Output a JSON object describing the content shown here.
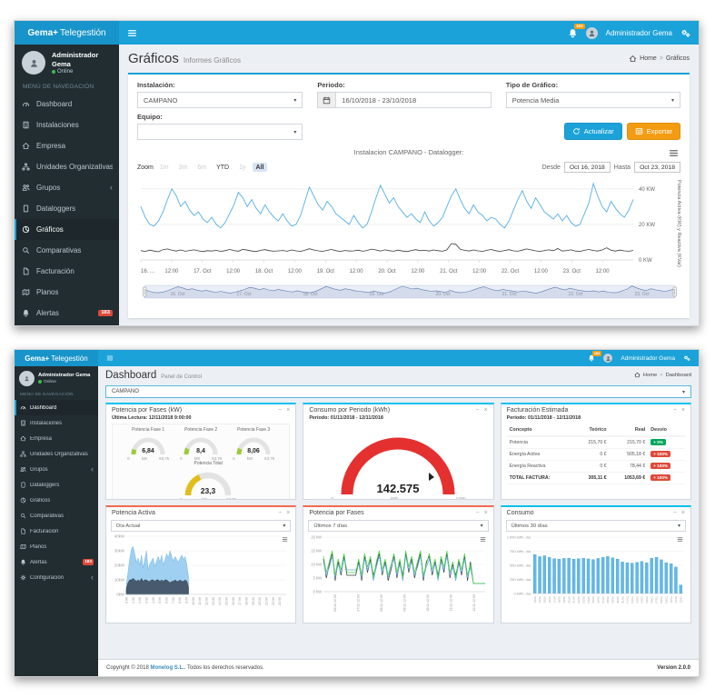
{
  "app": {
    "brand_bold": "Gema+",
    "brand_light": "Telegestión",
    "user_name": "Administrador Gema",
    "user_status": "Online",
    "notification_count": "183"
  },
  "sidebar": {
    "header": "MENÚ DE NAVEGACIÓN",
    "items": [
      {
        "id": "dashboard",
        "label": "Dashboard",
        "icon": "tachometer-icon"
      },
      {
        "id": "instalaciones",
        "label": "Instalaciones",
        "icon": "building-icon"
      },
      {
        "id": "empresa",
        "label": "Empresa",
        "icon": "home-icon"
      },
      {
        "id": "unidades",
        "label": "Unidades Organizativas",
        "icon": "sitemap-icon"
      },
      {
        "id": "grupos",
        "label": "Grupos",
        "icon": "users-icon",
        "chevron": true
      },
      {
        "id": "dataloggers",
        "label": "Dataloggers",
        "icon": "tablet-icon"
      },
      {
        "id": "graficos",
        "label": "Gráficos",
        "icon": "pie-chart-icon"
      },
      {
        "id": "comparativas",
        "label": "Comparativas",
        "icon": "search-icon"
      },
      {
        "id": "facturacion",
        "label": "Facturación",
        "icon": "file-icon"
      },
      {
        "id": "planos",
        "label": "Planos",
        "icon": "map-icon"
      },
      {
        "id": "alertas",
        "label": "Alertas",
        "icon": "bell-icon",
        "badge": "183"
      },
      {
        "id": "configuracion",
        "label": "Configuración",
        "icon": "gear-icon",
        "chevron": true
      }
    ]
  },
  "graficos": {
    "title": "Gráficos",
    "subtitle": "Informes Gráficos",
    "breadcrumb": {
      "home": "Home",
      "current": "Gráficos"
    },
    "filters": {
      "instalacion_label": "Instalación:",
      "instalacion_value": "CAMPANO",
      "periodo_label": "Periodo:",
      "periodo_value": "16/10/2018 - 23/10/2018",
      "tipo_label": "Tipo de Gráfico:",
      "tipo_value": "Potencia Media",
      "equipo_label": "Equipo:",
      "equipo_value": "",
      "actualizar_label": "Actualizar",
      "exportar_label": "Exportar"
    },
    "chart": {
      "title": "Instalacion CAMPANO - Datalogger:",
      "zoom_label": "Zoom",
      "zoom_buttons": [
        {
          "label": "1m",
          "state": "disabled"
        },
        {
          "label": "3m",
          "state": "disabled"
        },
        {
          "label": "6m",
          "state": "disabled"
        },
        {
          "label": "YTD",
          "state": "normal"
        },
        {
          "label": "1y",
          "state": "disabled"
        },
        {
          "label": "All",
          "state": "active"
        }
      ],
      "desde_label": "Desde",
      "desde_value": "Oct 16, 2018",
      "hasta_label": "Hasta",
      "hasta_value": "Oct 23, 2018"
    }
  },
  "dashboard": {
    "title": "Dashboard",
    "subtitle": "Panel de Control",
    "breadcrumb": {
      "home": "Home",
      "current": "Dashboard"
    },
    "selector_value": "CAMPANO",
    "cards": {
      "potencia_fases_kw": {
        "title": "Potencia por Fases (kW)",
        "subtitle": "Última Lectura: 12/11/2018 9:00:00"
      },
      "consumo_periodo": {
        "title": "Consumo por Periodo (kWh)",
        "subtitle": "Periodo: 01/11/2018 - 12/11/2018"
      },
      "facturacion_estimada": {
        "title": "Facturación Estimada",
        "subtitle": "Periodo: 01/11/2018 - 12/11/2018",
        "table": {
          "headers": [
            "Concepto",
            "Teórico",
            "Real",
            "Desvío"
          ],
          "rows": [
            {
              "concepto": "Potencia",
              "teorico": "215,70 €",
              "real": "215,70 €",
              "desvio": "+ 0%",
              "desvio_state": "ok"
            },
            {
              "concepto": "Energía Activa",
              "teorico": "0 €",
              "real": "505,18 €",
              "desvio": "+ 100%",
              "desvio_state": "bad"
            },
            {
              "concepto": "Energía Reactiva",
              "teorico": "0 €",
              "real": "78,44 €",
              "desvio": "+ 100%",
              "desvio_state": "bad"
            },
            {
              "concepto": "TOTAL FACTURA:",
              "teorico": "305,11 €",
              "real": "1053,69 €",
              "desvio": "+ 100%",
              "desvio_state": "bad",
              "total": true
            }
          ]
        }
      },
      "potencia_activa": {
        "title": "Potencia Activa",
        "select_value": "Día Actual"
      },
      "potencia_fases": {
        "title": "Potencia por Fases",
        "select_value": "Últimos 7 días"
      },
      "consumo": {
        "title": "Consumo",
        "select_value": "Últimos 30 días"
      }
    },
    "footer": {
      "copyright_prefix": "Copyright © 2018 ",
      "company": "Monelog S.L.",
      "copyright_suffix": ". Todos los derechos reservados.",
      "version": "Version 2.0.0"
    }
  },
  "chart_data": [
    {
      "id": "potencia-media",
      "type": "line",
      "title": "Instalacion CAMPANO - Datalogger:",
      "ylabel": "Potencia Activa (KW) y Reactiva (KVar)",
      "ymax": 45,
      "yticks": [
        {
          "value": 40,
          "label": "40 KW"
        },
        {
          "value": 20,
          "label": "20 KW"
        },
        {
          "value": 0,
          "label": "0 KW"
        }
      ],
      "xlabels": [
        "16. ...",
        "12:00",
        "17. Oct",
        "12:00",
        "18. Oct",
        "12:00",
        "19. Oct",
        "12:00",
        "20. Oct",
        "12:00",
        "21. Oct",
        "12:00",
        "22. Oct",
        "12:00",
        "23. Oct",
        "12:00"
      ],
      "navigator_labels": [
        "16. Oct",
        "17. Oct",
        "18. Oct",
        "19. Oct",
        "20. Oct",
        "21. Oct",
        "22. Oct",
        "23. Oct"
      ],
      "series": [
        {
          "color": "#55aee3",
          "values": [
            30,
            24,
            20,
            19,
            22,
            27,
            34,
            40,
            36,
            30,
            33,
            28,
            25,
            27,
            23,
            21,
            24,
            20,
            18,
            21,
            26,
            31,
            38,
            35,
            30,
            34,
            29,
            26,
            31,
            27,
            24,
            22,
            26,
            22,
            19,
            20,
            25,
            33,
            41,
            36,
            31,
            28,
            33,
            30,
            26,
            24,
            22,
            20,
            25,
            21,
            18,
            20,
            27,
            35,
            42,
            37,
            32,
            35,
            30,
            27,
            24,
            26,
            23,
            21,
            27,
            22,
            19,
            21,
            24,
            30,
            36,
            40,
            34,
            29,
            26,
            31,
            27,
            25,
            22,
            24,
            23,
            20,
            18,
            22,
            28,
            34,
            39,
            33,
            29,
            35,
            31,
            27,
            25,
            23,
            26,
            22,
            25,
            21,
            19,
            20,
            26,
            32,
            43,
            36,
            30,
            27,
            33,
            29,
            26,
            24,
            28,
            34
          ]
        },
        {
          "color": "#3c3c40",
          "values": [
            5.2,
            4.8,
            5.5,
            5.0,
            4.6,
            5.8,
            6.2,
            5.4,
            5.0,
            5.6,
            4.9,
            5.3,
            5.7,
            5.1,
            4.7,
            5.2,
            5.0,
            5.4,
            4.8,
            5.2,
            5.9,
            5.3,
            4.9,
            6.0,
            5.5,
            5.0,
            4.7,
            5.4,
            5.8,
            5.2,
            4.9,
            5.1,
            5.3,
            4.9,
            5.6,
            5.1,
            4.8,
            5.5,
            6.3,
            5.6,
            5.1,
            4.8,
            5.4,
            5.9,
            5.2,
            4.8,
            5.3,
            5.0,
            5.1,
            5.5,
            4.9,
            5.3,
            6.1,
            5.6,
            5.0,
            5.7,
            5.2,
            4.9,
            5.5,
            5.0,
            4.7,
            5.3,
            5.8,
            5.2,
            5.4,
            5.0,
            5.6,
            5.2,
            4.9,
            5.7,
            9.2,
            8.8,
            6.0,
            5.4,
            5.0,
            5.6,
            5.1,
            4.8,
            5.4,
            5.9,
            5.2,
            4.8,
            5.3,
            5.8,
            5.1,
            4.9,
            5.5,
            6.2,
            5.6,
            5.1,
            4.8,
            5.3,
            5.7,
            5.2,
            6.4,
            5.0,
            5.3,
            5.7,
            5.0,
            4.8,
            5.4,
            5.9,
            5.3,
            5.0,
            5.6,
            6.8,
            5.4,
            5.0,
            5.5,
            5.1,
            4.9,
            5.3
          ]
        }
      ]
    },
    {
      "id": "potencia-activa-dia",
      "type": "area",
      "ymax": 40,
      "total_slots": 96,
      "yticks": [
        {
          "value": 40,
          "label": "40kW"
        },
        {
          "value": 30,
          "label": "30kW"
        },
        {
          "value": 20,
          "label": "20kW"
        },
        {
          "value": 10,
          "label": "10kW"
        },
        {
          "value": 0,
          "label": "0kW"
        }
      ],
      "xlabels": [
        "0:00",
        "1:00",
        "2:00",
        "3:00",
        "4:00",
        "5:00",
        "6:00",
        "7:00",
        "8:00",
        "9:00",
        "10:00",
        "11:00",
        "12:00",
        "13:00",
        "14:00",
        "15:00",
        "16:00",
        "17:00",
        "18:00",
        "19:00",
        "20:00",
        "21:00",
        "22:00",
        "23:00"
      ],
      "series": [
        {
          "color": "#9fd0f1",
          "stroke": "#74b6e4",
          "values": [
            6,
            15,
            24,
            31,
            33,
            28,
            22,
            25,
            20,
            27,
            18,
            24,
            30,
            17,
            21,
            23,
            25,
            19,
            23,
            26,
            22,
            27,
            20,
            24,
            28,
            25,
            30,
            26,
            23,
            26,
            24,
            22,
            25,
            27,
            24,
            26,
            20,
            12
          ]
        },
        {
          "color": "#475a6e",
          "stroke": "#33424f",
          "values": [
            4,
            8,
            10,
            10,
            11,
            10,
            9,
            10,
            9,
            11,
            9,
            10,
            10,
            9,
            9,
            10,
            10,
            9,
            10,
            10,
            9,
            10,
            9,
            10,
            10,
            9,
            8,
            9,
            9,
            10,
            9,
            9,
            10,
            9,
            9,
            10,
            9,
            5
          ]
        }
      ]
    },
    {
      "id": "potencia-fases-7d",
      "type": "line",
      "ymax": 20,
      "yticks": [
        {
          "value": 20,
          "label": "20 kW"
        },
        {
          "value": 15,
          "label": "15 kW"
        },
        {
          "value": 10,
          "label": "10 kW"
        },
        {
          "value": 5,
          "label": "5 kW"
        },
        {
          "value": 0,
          "label": "0 kW"
        }
      ],
      "xlabels": [
        "06/11 12:00",
        "07/11 12:00",
        "08/11 12:00",
        "09/11 12:00",
        "10/11 12:00",
        "11/11 12:00",
        "12/11 12:00"
      ],
      "series": [
        {
          "color": "#3a3a3a",
          "values": [
            12,
            5,
            10,
            14,
            4,
            11,
            6,
            13,
            6,
            6,
            6,
            6,
            11,
            4,
            13,
            7,
            12,
            6,
            10,
            14,
            6,
            11,
            4,
            8,
            13,
            5,
            11,
            6,
            14,
            7,
            12,
            5,
            10,
            14,
            4,
            11,
            13,
            6,
            11,
            6,
            12,
            7,
            14,
            5,
            10,
            6,
            11,
            6,
            13,
            4,
            11,
            3,
            3,
            3,
            3,
            3
          ]
        },
        {
          "color": "#6aa8e8",
          "values": [
            11,
            6,
            9,
            13,
            5,
            10,
            7,
            12,
            8,
            8,
            8,
            8,
            10,
            5,
            12,
            8,
            11,
            4,
            9,
            13,
            7,
            10,
            5,
            9,
            12,
            6,
            10,
            4,
            13,
            8,
            11,
            6,
            9,
            13,
            5,
            9,
            12,
            7,
            10,
            4,
            11,
            8,
            13,
            6,
            9,
            4,
            10,
            7,
            12,
            5,
            9,
            3,
            3,
            3,
            3,
            3
          ]
        },
        {
          "color": "#3fd23f",
          "values": [
            13,
            7,
            11,
            15,
            6,
            12,
            8,
            14,
            7,
            7,
            7,
            7,
            12,
            6,
            14,
            9,
            13,
            5,
            11,
            15,
            8,
            12,
            6,
            10,
            14,
            7,
            12,
            5,
            15,
            9,
            13,
            7,
            11,
            15,
            6,
            10,
            14,
            8,
            12,
            5,
            13,
            9,
            15,
            7,
            11,
            5,
            12,
            8,
            14,
            6,
            10,
            3,
            3,
            3,
            3,
            3
          ]
        }
      ]
    },
    {
      "id": "consumo-30d",
      "type": "bar",
      "ymax": 1000,
      "color": "#62b9ea",
      "yticks": [
        {
          "value": 1000,
          "label": "1.000 kWh. día"
        },
        {
          "value": 750,
          "label": "750 kWh. día"
        },
        {
          "value": 500,
          "label": "500 kWh. día"
        },
        {
          "value": 250,
          "label": "250 kWh. día"
        },
        {
          "value": 0,
          "label": "0 kWh. día"
        }
      ],
      "xlabels": [
        "13/10",
        "14/10",
        "15/10",
        "16/10",
        "17/10",
        "18/10",
        "19/10",
        "20/10",
        "21/10",
        "22/10",
        "23/10",
        "24/10",
        "25/10",
        "26/10",
        "27/10",
        "28/10",
        "29/10",
        "30/10",
        "31/10",
        "01/11",
        "02/11",
        "03/11",
        "04/11",
        "05/11",
        "06/11",
        "07/11",
        "08/11",
        "09/11",
        "10/11",
        "11/11",
        "12/11"
      ],
      "values": [
        690,
        655,
        670,
        640,
        618,
        612,
        622,
        628,
        610,
        618,
        626,
        615,
        604,
        622,
        641,
        656,
        634,
        612,
        560,
        545,
        538,
        552,
        570,
        544,
        628,
        642,
        598,
        545,
        528,
        470,
        150
      ]
    },
    {
      "id": "gauges",
      "type": "gauge",
      "groups": [
        {
          "panel": "potencia_fases_kw",
          "items": [
            {
              "label": "Potencia Fase 1",
              "value": "6,84",
              "value_num": 6.84,
              "min_label": "0",
              "max_label": "63,75",
              "max_num": 63.75,
              "unit": "kW",
              "color": "#9ccb3b",
              "size": "small"
            },
            {
              "label": "Potencia Fase 2",
              "value": "8,4",
              "value_num": 8.4,
              "min_label": "0",
              "max_label": "63,75",
              "max_num": 63.75,
              "unit": "kW",
              "color": "#9ccb3b",
              "size": "small"
            },
            {
              "label": "Potencia Fase 3",
              "value": "8,06",
              "value_num": 8.06,
              "min_label": "0",
              "max_label": "63,75",
              "max_num": 63.75,
              "unit": "kW",
              "color": "#9ccb3b",
              "size": "small"
            },
            {
              "label": "Potencia Total",
              "value": "23,3",
              "value_num": 23.3,
              "min_label": "0",
              "max_label": "63,75",
              "max_num": 63.75,
              "unit": "kW",
              "color": "#e2bd1b",
              "size": "medium"
            }
          ]
        },
        {
          "panel": "consumo_periodo",
          "items": [
            {
              "label": "",
              "value": "142.575",
              "value_num": 142575,
              "min_label": "0",
              "max_label": "2.000",
              "max_num": 2000,
              "unit": "kWh",
              "color": "#e53030",
              "size": "large"
            }
          ]
        }
      ]
    }
  ]
}
